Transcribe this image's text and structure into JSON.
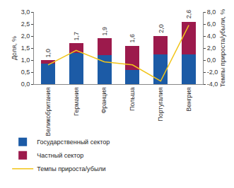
{
  "chart_data": {
    "type": "bar",
    "stacked": true,
    "categories": [
      "Великобритания",
      "Германия",
      "Франция",
      "Польша",
      "Португалия",
      "Венгрия"
    ],
    "series": [
      {
        "name": "Государственный сектор",
        "type": "bar",
        "color": "#1c5ba6",
        "values": [
          0.85,
          1.3,
          1.2,
          0.6,
          1.25,
          1.25
        ]
      },
      {
        "name": "Частный сектор",
        "type": "bar",
        "color": "#9c1a4c",
        "values": [
          0.15,
          0.4,
          0.7,
          1.0,
          0.75,
          1.35
        ]
      },
      {
        "name": "Темпы прироста/убыли",
        "type": "line",
        "axis": "y2",
        "color": "#f2c51a",
        "values": [
          -0.8,
          1.6,
          -0.3,
          -0.8,
          -3.5,
          5.8
        ]
      }
    ],
    "totals": {
      "values": [
        1.0,
        1.7,
        1.9,
        1.6,
        2.0,
        2.6
      ],
      "value_labels": [
        "1,0",
        "1,7",
        "1,9",
        "1,6",
        "2,0",
        "2,6"
      ]
    },
    "y_label": "Доля, %",
    "y2_label": "Темпы прироста/убыли, %",
    "ylim": [
      0,
      3.0
    ],
    "yticks": [
      {
        "value": 0,
        "label": "0,0"
      },
      {
        "value": 0.5,
        "label": "0,5"
      },
      {
        "value": 1.0,
        "label": "1,0"
      },
      {
        "value": 1.5,
        "label": "1,5"
      },
      {
        "value": 2.0,
        "label": "2,0"
      },
      {
        "value": 2.5,
        "label": "2,5"
      },
      {
        "value": 3.0,
        "label": "3,0"
      }
    ],
    "y2lim": [
      -4,
      8
    ],
    "y2ticks": [
      {
        "value": -4,
        "label": "-4,0"
      },
      {
        "value": -2,
        "label": "-2,0"
      },
      {
        "value": 0,
        "label": "0,0"
      },
      {
        "value": 2,
        "label": "2,0"
      },
      {
        "value": 4,
        "label": "4,0"
      },
      {
        "value": 6,
        "label": "6,0"
      },
      {
        "value": 8,
        "label": "8,0"
      }
    ],
    "grid": false,
    "legend": "bottom"
  }
}
